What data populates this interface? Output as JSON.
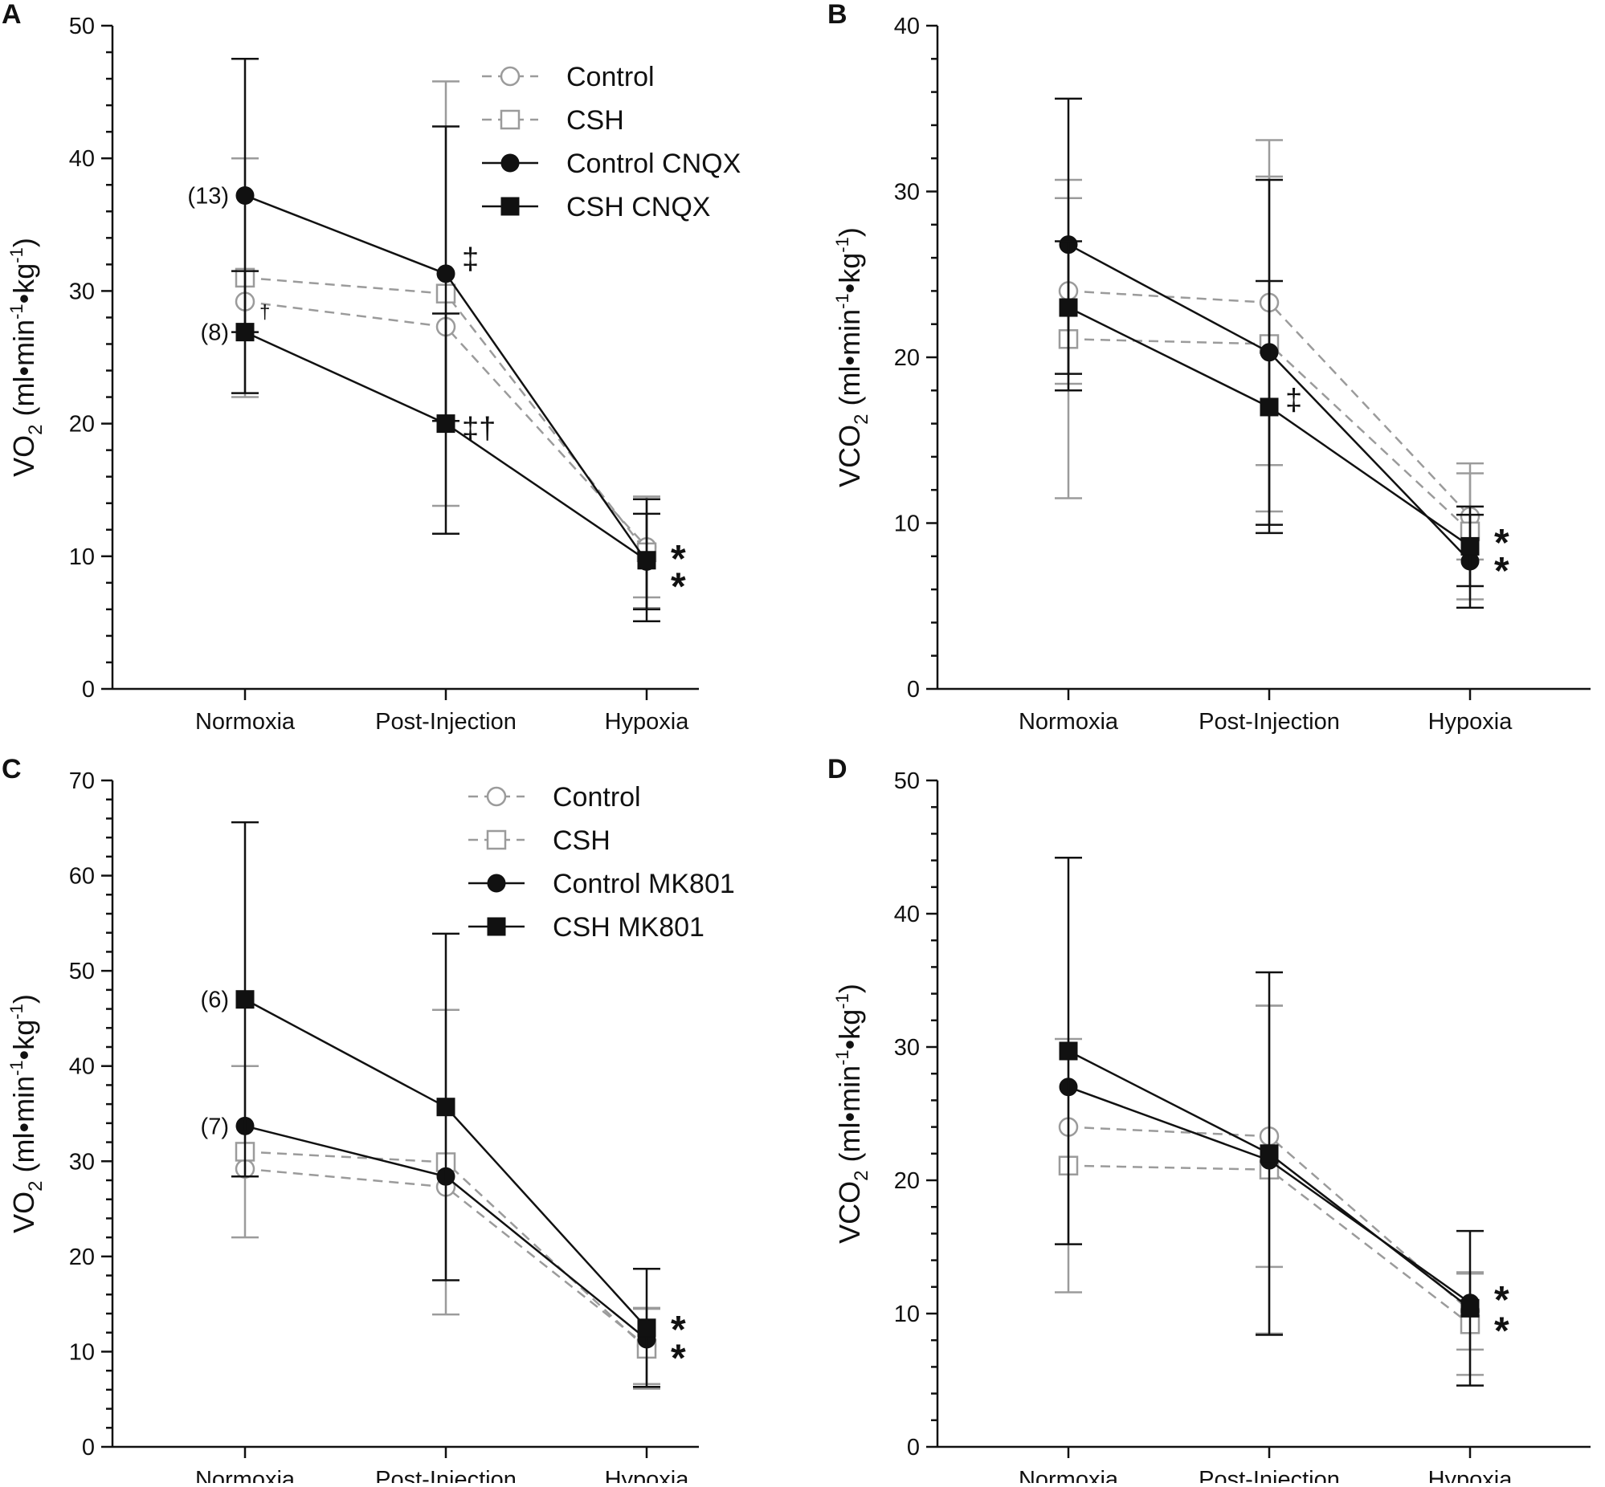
{
  "chart_data": [
    {
      "panel": "A",
      "type": "line",
      "ylabel_main": "VO",
      "ylabel_sub": "2",
      "ylabel_unit": "(ml•min",
      "ylabel_sup1": "-1",
      "ylabel_mid": "•kg",
      "ylabel_sup2": "-1",
      "ylabel_end": ")",
      "ylim": [
        0,
        50
      ],
      "major_step": 10,
      "minor_step": 2,
      "categories": [
        "Normoxia",
        "Post-Injection",
        "Hypoxia"
      ],
      "series": [
        {
          "name": "Control",
          "style": "open-circle",
          "color": "#9b9b9b",
          "dashed": true,
          "values": [
            29.2,
            27.3,
            10.7
          ],
          "errors": [
            null,
            null,
            3.8
          ]
        },
        {
          "name": "CSH",
          "style": "open-square",
          "color": "#9b9b9b",
          "dashed": true,
          "values": [
            31,
            29.8,
            10.3
          ],
          "errors": [
            9,
            16,
            4.2
          ]
        },
        {
          "name": "Control CNQX",
          "style": "filled-circle",
          "color": "#111111",
          "dashed": false,
          "values": [
            37.2,
            31.3,
            9.6
          ],
          "errors": [
            10.3,
            11.1,
            3.6
          ]
        },
        {
          "name": "CSH CNQX",
          "style": "filled-square",
          "color": "#111111",
          "dashed": false,
          "values": [
            26.9,
            20,
            9.7
          ],
          "errors": [
            4.6,
            8.3,
            4.6
          ]
        }
      ],
      "annotations": [
        {
          "text": "(13)",
          "cat": 0,
          "y": 37.2,
          "kind": "label-left"
        },
        {
          "text": "(8)",
          "cat": 0,
          "y": 26.9,
          "kind": "label-left"
        },
        {
          "text": "†",
          "cat": 0,
          "y": 27.8,
          "kind": "small-right"
        },
        {
          "text": "‡",
          "cat": 1,
          "y": 32.4,
          "kind": "big-right"
        },
        {
          "text": "‡†",
          "cat": 1,
          "y": 19.6,
          "kind": "big-right"
        },
        {
          "text": "*",
          "cat": 2,
          "y": 10.3,
          "kind": "star-right"
        },
        {
          "text": "*",
          "cat": 2,
          "y": 8.2,
          "kind": "star-right"
        }
      ],
      "legend_position": "top-right"
    },
    {
      "panel": "B",
      "type": "line",
      "ylabel_main": "VCO",
      "ylabel_sub": "2",
      "ylabel_unit": "(ml•min",
      "ylabel_sup1": "-1",
      "ylabel_mid": "•kg",
      "ylabel_sup2": "-1",
      "ylabel_end": ")",
      "ylim": [
        0,
        40
      ],
      "major_step": 10,
      "minor_step": 2,
      "categories": [
        "Normoxia",
        "Post-Injection",
        "Hypoxia"
      ],
      "series": [
        {
          "name": "Control",
          "style": "open-circle",
          "color": "#9b9b9b",
          "dashed": true,
          "values": [
            24,
            23.3,
            10.4
          ],
          "errors": [
            5.6,
            9.8,
            2.6
          ]
        },
        {
          "name": "CSH",
          "style": "open-square",
          "color": "#9b9b9b",
          "dashed": true,
          "values": [
            21.1,
            20.8,
            9.5
          ],
          "errors": [
            9.6,
            10.1,
            4.1
          ]
        },
        {
          "name": "Control CNQX",
          "style": "filled-circle",
          "color": "#111111",
          "dashed": false,
          "values": [
            26.8,
            20.3,
            7.7
          ],
          "errors": [
            8.8,
            10.4,
            2.8
          ]
        },
        {
          "name": "CSH CNQX",
          "style": "filled-square",
          "color": "#111111",
          "dashed": false,
          "values": [
            23,
            17,
            8.6
          ],
          "errors": [
            4,
            7.6,
            2.4
          ]
        }
      ],
      "annotations": [
        {
          "text": "‡",
          "cat": 1,
          "y": 17.4,
          "kind": "big-right"
        },
        {
          "text": "*",
          "cat": 2,
          "y": 9.2,
          "kind": "star-right"
        },
        {
          "text": "*",
          "cat": 2,
          "y": 7.5,
          "kind": "star-right"
        }
      ],
      "legend_position": "none"
    },
    {
      "panel": "C",
      "type": "line",
      "ylabel_main": "VO",
      "ylabel_sub": "2",
      "ylabel_unit": "(ml•min",
      "ylabel_sup1": "-1",
      "ylabel_mid": "•kg",
      "ylabel_sup2": "-1",
      "ylabel_end": ")",
      "ylim": [
        0,
        70
      ],
      "major_step": 10,
      "minor_step": 2,
      "categories": [
        "Normoxia",
        "Post-Injection",
        "Hypoxia"
      ],
      "series": [
        {
          "name": "Control",
          "style": "open-circle",
          "color": "#9b9b9b",
          "dashed": true,
          "values": [
            29.2,
            27.3,
            10.6
          ],
          "errors": [
            null,
            null,
            4
          ]
        },
        {
          "name": "CSH",
          "style": "open-square",
          "color": "#9b9b9b",
          "dashed": true,
          "values": [
            31,
            29.9,
            10.3
          ],
          "errors": [
            9,
            16,
            4.2
          ]
        },
        {
          "name": "Control MK801",
          "style": "filled-circle",
          "color": "#111111",
          "dashed": false,
          "values": [
            33.7,
            28.4,
            11.3
          ],
          "errors": [
            null,
            null,
            null
          ]
        },
        {
          "name": "CSH MK801",
          "style": "filled-square",
          "color": "#111111",
          "dashed": false,
          "values": [
            47,
            35.7,
            12.5
          ],
          "errors": [
            18.6,
            18.2,
            6.2
          ]
        }
      ],
      "annotations": [
        {
          "text": "(6)",
          "cat": 0,
          "y": 47,
          "kind": "label-left"
        },
        {
          "text": "(7)",
          "cat": 0,
          "y": 33.7,
          "kind": "label-left"
        },
        {
          "text": "*",
          "cat": 2,
          "y": 13,
          "kind": "star-right"
        },
        {
          "text": "*",
          "cat": 2,
          "y": 10,
          "kind": "star-right"
        }
      ],
      "legend_position": "top-right"
    },
    {
      "panel": "D",
      "type": "line",
      "ylabel_main": "VCO",
      "ylabel_sub": "2",
      "ylabel_unit": "(ml•min",
      "ylabel_sup1": "-1",
      "ylabel_mid": "•kg",
      "ylabel_sup2": "-1",
      "ylabel_end": ")",
      "ylim": [
        0,
        50
      ],
      "major_step": 10,
      "minor_step": 2,
      "categories": [
        "Normoxia",
        "Post-Injection",
        "Hypoxia"
      ],
      "series": [
        {
          "name": "Control",
          "style": "open-circle",
          "color": "#9b9b9b",
          "dashed": true,
          "values": [
            24,
            23.3,
            10.2
          ],
          "errors": [
            null,
            9.8,
            2.9
          ]
        },
        {
          "name": "CSH",
          "style": "open-square",
          "color": "#9b9b9b",
          "dashed": true,
          "values": [
            21.1,
            20.8,
            9.2
          ],
          "errors": [
            9.5,
            12.3,
            3.8
          ]
        },
        {
          "name": "Control MK801",
          "style": "filled-circle",
          "color": "#111111",
          "dashed": false,
          "values": [
            27,
            21.5,
            10.8
          ],
          "errors": [
            null,
            null,
            null
          ]
        },
        {
          "name": "CSH MK801",
          "style": "filled-square",
          "color": "#111111",
          "dashed": false,
          "values": [
            29.7,
            22,
            10.4
          ],
          "errors": [
            14.5,
            13.6,
            5.8
          ]
        }
      ],
      "annotations": [
        {
          "text": "*",
          "cat": 2,
          "y": 11.5,
          "kind": "star-right"
        },
        {
          "text": "*",
          "cat": 2,
          "y": 9.2,
          "kind": "star-right"
        }
      ],
      "legend_position": "none"
    }
  ]
}
